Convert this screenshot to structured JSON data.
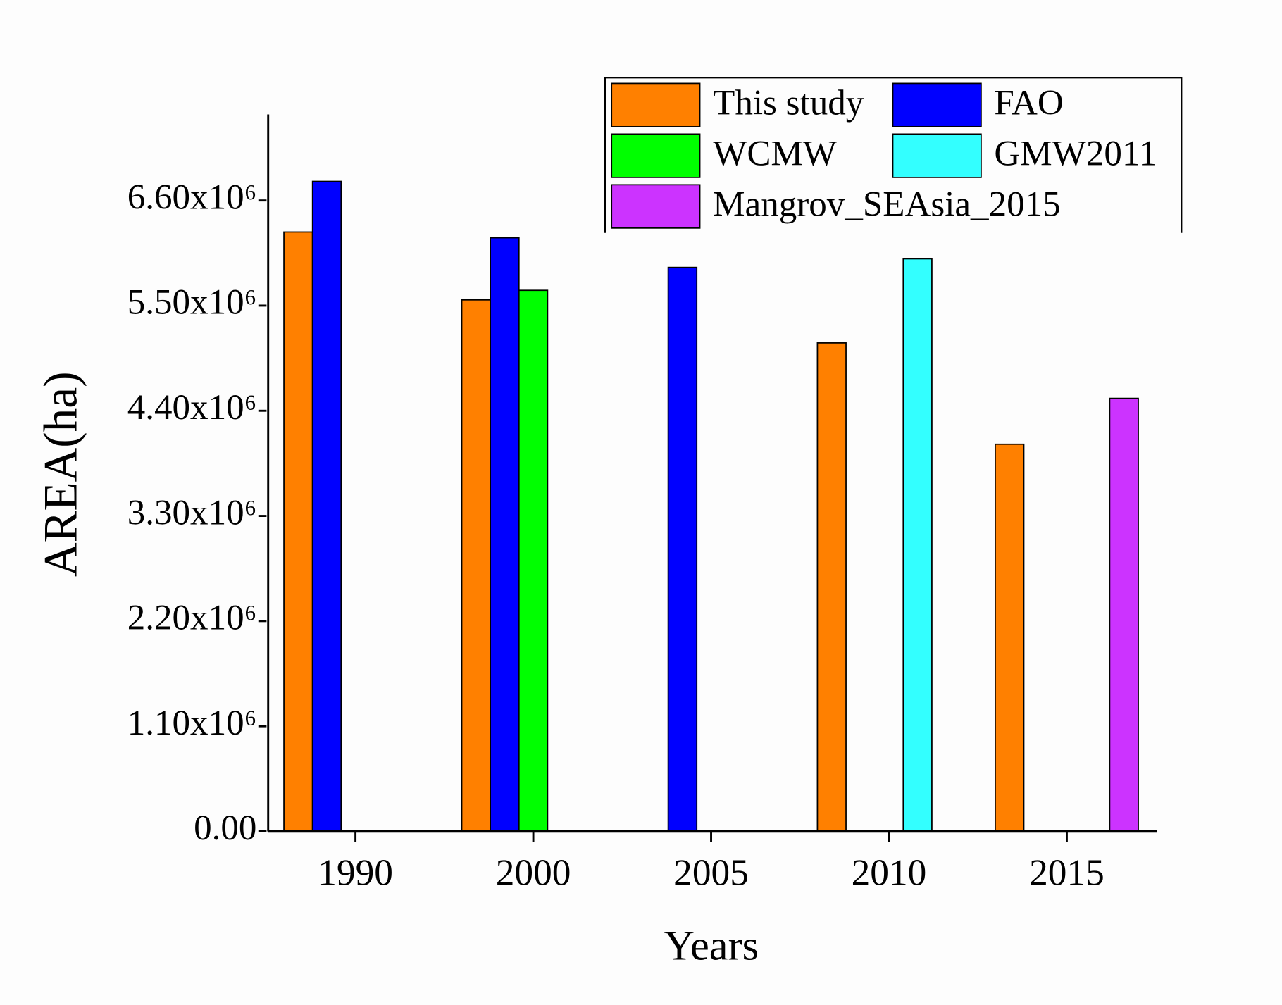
{
  "chart_data": {
    "type": "bar",
    "categories": [
      "1990",
      "2000",
      "2005",
      "2010",
      "2015"
    ],
    "series": [
      {
        "name": "This study",
        "color": "#ff8000",
        "values": [
          6270000,
          5560000,
          null,
          5110000,
          4050000
        ]
      },
      {
        "name": "FAO",
        "color": "#0000ff",
        "values": [
          6800000,
          6210000,
          5900000,
          null,
          null
        ]
      },
      {
        "name": "WCMW",
        "color": "#00ff00",
        "values": [
          null,
          5660000,
          null,
          null,
          null
        ]
      },
      {
        "name": "GMW2011",
        "color": "#33ffff",
        "values": [
          null,
          null,
          null,
          5990000,
          null
        ]
      },
      {
        "name": "Mangrov_SEAsia_2015",
        "color": "#cc33ff",
        "values": [
          null,
          null,
          null,
          null,
          4530000
        ]
      }
    ],
    "ylim": [
      0,
      7500000
    ],
    "yticks": [
      {
        "value": 0,
        "label": "0.00"
      },
      {
        "value": 1100000,
        "label": "1.10x10⁶"
      },
      {
        "value": 2200000,
        "label": "2.20x10⁶"
      },
      {
        "value": 3300000,
        "label": "3.30x10⁶"
      },
      {
        "value": 4400000,
        "label": "4.40x10⁶"
      },
      {
        "value": 5500000,
        "label": "5.50x10⁶"
      },
      {
        "value": 6600000,
        "label": "6.60x10⁶"
      }
    ],
    "x_label": "Years",
    "y_label": "AREA(ha)",
    "legend_position": "upper right"
  }
}
